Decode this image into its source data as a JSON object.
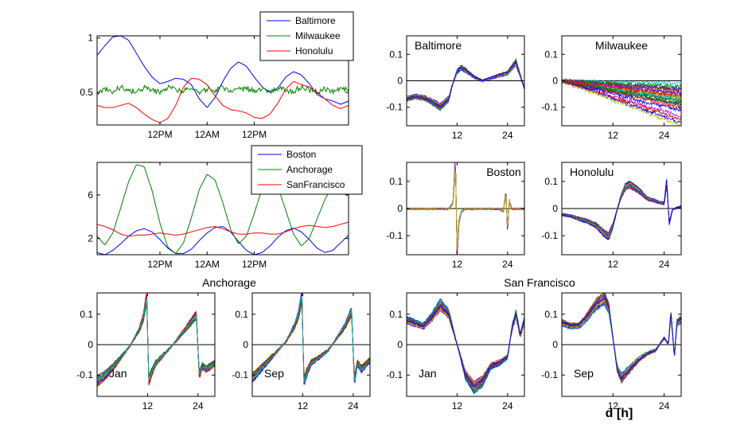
{
  "figure": {
    "xlabel": "d [h]"
  },
  "colors": {
    "blue": "#0000ff",
    "green": "#008000",
    "red": "#ff0000",
    "cycle": [
      "#0000ff",
      "#008000",
      "#ff0000",
      "#00bfbf",
      "#bf00bf",
      "#bfbf00",
      "#404040"
    ]
  },
  "chart_data": [
    {
      "id": "ts1",
      "type": "line",
      "xlim": [
        0,
        64
      ],
      "ylim": [
        0.2,
        1.02
      ],
      "yticks": [
        {
          "v": 0.5,
          "label": "0.5"
        },
        {
          "v": 1,
          "label": "1"
        }
      ],
      "xticks": [
        {
          "v": 16,
          "label": "12PM"
        },
        {
          "v": 28,
          "label": "12AM"
        },
        {
          "v": 40,
          "label": "12PM"
        }
      ],
      "legend": {
        "position": "top-right",
        "entries": [
          "Baltimore",
          "Milwaukee",
          "Honolulu"
        ]
      },
      "series": [
        {
          "name": "Baltimore",
          "color": "blue",
          "x": [
            0,
            2,
            4,
            6,
            8,
            10,
            12,
            14,
            16,
            18,
            20,
            22,
            24,
            26,
            28,
            30,
            32,
            34,
            36,
            38,
            40,
            42,
            44,
            46,
            48,
            50,
            52,
            54,
            56,
            58,
            60,
            62,
            64
          ],
          "y": [
            0.84,
            0.93,
            1.01,
            1.02,
            0.98,
            0.86,
            0.74,
            0.64,
            0.58,
            0.6,
            0.63,
            0.62,
            0.57,
            0.44,
            0.36,
            0.45,
            0.6,
            0.72,
            0.78,
            0.74,
            0.64,
            0.55,
            0.5,
            0.54,
            0.64,
            0.69,
            0.66,
            0.58,
            0.48,
            0.44,
            0.42,
            0.39,
            0.42
          ]
        },
        {
          "name": "Milwaukee",
          "color": "green",
          "x": [
            0,
            2,
            4,
            6,
            8,
            10,
            12,
            14,
            16,
            18,
            20,
            22,
            24,
            26,
            28,
            30,
            32,
            34,
            36,
            38,
            40,
            42,
            44,
            46,
            48,
            50,
            52,
            54,
            56,
            58,
            60,
            62,
            64
          ],
          "y": [
            0.5,
            0.53,
            0.51,
            0.55,
            0.52,
            0.5,
            0.54,
            0.52,
            0.5,
            0.55,
            0.53,
            0.51,
            0.54,
            0.5,
            0.53,
            0.52,
            0.55,
            0.5,
            0.52,
            0.54,
            0.51,
            0.53,
            0.5,
            0.54,
            0.52,
            0.51,
            0.55,
            0.52,
            0.5,
            0.53,
            0.51,
            0.54,
            0.52
          ]
        },
        {
          "name": "Honolulu",
          "color": "red",
          "x": [
            0,
            2,
            4,
            6,
            8,
            10,
            12,
            14,
            16,
            18,
            20,
            22,
            24,
            26,
            28,
            30,
            32,
            34,
            36,
            38,
            40,
            42,
            44,
            46,
            48,
            50,
            52,
            54,
            56,
            58,
            60,
            62,
            64
          ],
          "y": [
            0.38,
            0.36,
            0.36,
            0.38,
            0.4,
            0.36,
            0.3,
            0.25,
            0.22,
            0.26,
            0.38,
            0.55,
            0.63,
            0.62,
            0.57,
            0.47,
            0.38,
            0.34,
            0.33,
            0.31,
            0.27,
            0.26,
            0.3,
            0.4,
            0.53,
            0.6,
            0.57,
            0.55,
            0.5,
            0.44,
            0.38,
            0.35,
            0.38
          ]
        }
      ]
    },
    {
      "id": "ts2",
      "type": "line",
      "xlim": [
        0,
        64
      ],
      "ylim": [
        0.5,
        9.0
      ],
      "yticks": [
        {
          "v": 2,
          "label": "2"
        },
        {
          "v": 6,
          "label": "6"
        }
      ],
      "xticks": [
        {
          "v": 16,
          "label": "12PM"
        },
        {
          "v": 28,
          "label": "12AM"
        },
        {
          "v": 40,
          "label": "12PM"
        }
      ],
      "legend": {
        "position": "top-right",
        "entries": [
          "Boston",
          "Anchorage",
          "SanFrancisco"
        ]
      },
      "series": [
        {
          "name": "Boston",
          "color": "blue",
          "x": [
            0,
            2,
            4,
            6,
            8,
            10,
            12,
            14,
            16,
            18,
            20,
            22,
            24,
            26,
            28,
            30,
            32,
            34,
            36,
            38,
            40,
            42,
            44,
            46,
            48,
            50,
            52,
            54,
            56,
            58,
            60,
            62,
            64
          ],
          "y": [
            0.7,
            0.5,
            0.9,
            1.5,
            2.2,
            2.7,
            2.9,
            2.6,
            1.9,
            1.1,
            0.6,
            0.6,
            1.0,
            1.8,
            2.5,
            3.0,
            3.1,
            2.6,
            1.7,
            0.9,
            0.5,
            0.7,
            1.3,
            2.1,
            2.7,
            2.95,
            2.6,
            1.9,
            1.1,
            0.7,
            0.9,
            1.6,
            2.3
          ]
        },
        {
          "name": "Anchorage",
          "color": "green",
          "x": [
            0,
            2,
            4,
            6,
            8,
            10,
            12,
            14,
            16,
            18,
            20,
            22,
            24,
            26,
            28,
            30,
            32,
            34,
            36,
            38,
            40,
            42,
            44,
            46,
            48,
            50,
            52,
            54,
            56,
            58,
            60,
            62,
            64
          ],
          "y": [
            2.2,
            1.4,
            2.5,
            4.8,
            7.2,
            8.8,
            8.6,
            6.4,
            3.4,
            1.2,
            0.6,
            1.6,
            3.9,
            6.5,
            7.9,
            7.4,
            5.3,
            2.8,
            1.5,
            2.2,
            4.3,
            6.6,
            7.6,
            6.8,
            4.6,
            2.4,
            1.3,
            2.0,
            3.8,
            5.6,
            6.9,
            7.8,
            8.4
          ]
        },
        {
          "name": "SanFrancisco",
          "color": "red",
          "x": [
            0,
            2,
            4,
            6,
            8,
            10,
            12,
            14,
            16,
            18,
            20,
            22,
            24,
            26,
            28,
            30,
            32,
            34,
            36,
            38,
            40,
            42,
            44,
            46,
            48,
            50,
            52,
            54,
            56,
            58,
            60,
            62,
            64
          ],
          "y": [
            3.3,
            3.1,
            2.8,
            2.4,
            2.2,
            2.3,
            2.3,
            2.4,
            2.5,
            2.4,
            2.3,
            2.4,
            2.6,
            2.8,
            3.0,
            3.1,
            2.9,
            2.6,
            2.4,
            2.4,
            2.5,
            2.5,
            2.4,
            2.4,
            2.6,
            2.9,
            3.1,
            3.2,
            3.1,
            3.0,
            3.1,
            3.3,
            3.5
          ]
        }
      ]
    },
    {
      "id": "p_balt",
      "type": "line",
      "title": "Baltimore",
      "title_pos": "top-left",
      "xlim": [
        0,
        28
      ],
      "ylim": [
        -0.17,
        0.17
      ],
      "yticks": [
        {
          "v": -0.1,
          "label": "-0.1"
        },
        {
          "v": 0,
          "label": "0"
        },
        {
          "v": 0.1,
          "label": "0.1"
        }
      ],
      "xticks": [
        {
          "v": 12,
          "label": "12"
        },
        {
          "v": 24,
          "label": "24"
        }
      ],
      "curves": 22,
      "spread": 0.022,
      "base": {
        "x": [
          0,
          2,
          4,
          6,
          8,
          10,
          11,
          12,
          13,
          14,
          16,
          18,
          20,
          22,
          24,
          25,
          26,
          27,
          28
        ],
        "y": [
          -0.06,
          -0.05,
          -0.055,
          -0.07,
          -0.09,
          -0.06,
          0.0,
          0.045,
          0.06,
          0.05,
          0.025,
          0.01,
          0.02,
          0.03,
          0.04,
          0.06,
          0.08,
          0.03,
          -0.02
        ]
      }
    },
    {
      "id": "p_milw",
      "type": "line",
      "title": "Milwaukee",
      "title_pos": "top-center",
      "xlim": [
        0,
        28
      ],
      "ylim": [
        -0.17,
        0.17
      ],
      "yticks": [
        {
          "v": -0.1,
          "label": "-0.1"
        },
        {
          "v": 0,
          "label": "0"
        },
        {
          "v": 0.1,
          "label": "0.1"
        }
      ],
      "xticks": [
        {
          "v": 12,
          "label": "12"
        },
        {
          "v": 24,
          "label": "24"
        }
      ],
      "curves": 24,
      "fan": true,
      "base": {
        "x": [
          0,
          4,
          8,
          12,
          16,
          20,
          24,
          28
        ],
        "y": [
          0,
          0,
          0,
          0,
          0,
          0,
          0,
          0
        ]
      }
    },
    {
      "id": "p_bost",
      "type": "line",
      "title": "Boston",
      "title_pos": "top-right",
      "xlim": [
        0,
        28
      ],
      "ylim": [
        -0.17,
        0.17
      ],
      "yticks": [
        {
          "v": -0.1,
          "label": "-0.1"
        },
        {
          "v": 0,
          "label": "0"
        },
        {
          "v": 0.1,
          "label": "0.1"
        }
      ],
      "xticks": [
        {
          "v": 12,
          "label": "12"
        },
        {
          "v": 24,
          "label": "24"
        }
      ],
      "curves": 20,
      "spread": 0.004,
      "base": {
        "x": [
          0,
          4,
          8,
          10,
          11,
          11.6,
          12,
          12.4,
          13,
          14,
          16,
          20,
          22,
          23,
          23.6,
          24,
          24.4,
          25,
          26,
          28
        ],
        "y": [
          0,
          0,
          0,
          0.0,
          0.02,
          0.17,
          -0.17,
          -0.05,
          -0.01,
          0,
          0,
          0,
          0,
          -0.01,
          0.06,
          -0.08,
          0.03,
          0,
          0,
          0
        ]
      }
    },
    {
      "id": "p_hono",
      "type": "line",
      "title": "Honolulu",
      "title_pos": "top-left",
      "xlim": [
        0,
        28
      ],
      "ylim": [
        -0.17,
        0.17
      ],
      "yticks": [
        {
          "v": -0.1,
          "label": "-0.1"
        },
        {
          "v": 0,
          "label": "0"
        },
        {
          "v": 0.1,
          "label": "0.1"
        }
      ],
      "xticks": [
        {
          "v": 12,
          "label": "12"
        },
        {
          "v": 24,
          "label": "24"
        }
      ],
      "curves": 22,
      "spread": 0.013,
      "base": {
        "x": [
          0,
          2,
          4,
          6,
          8,
          10,
          11,
          12,
          13,
          14,
          15,
          16,
          18,
          20,
          22,
          24,
          24.6,
          25.2,
          26,
          28
        ],
        "y": [
          -0.02,
          -0.025,
          -0.035,
          -0.045,
          -0.06,
          -0.09,
          -0.1,
          -0.06,
          0.0,
          0.05,
          0.085,
          0.09,
          0.07,
          0.04,
          0.03,
          0.02,
          0.1,
          -0.05,
          0.0,
          0.01
        ]
      }
    },
    {
      "id": "p_anch_jan",
      "type": "line",
      "title": "Jan",
      "title_pos": "bottom-left",
      "xlim": [
        0,
        28
      ],
      "ylim": [
        -0.17,
        0.17
      ],
      "yticks": [
        {
          "v": -0.1,
          "label": "-0.1"
        },
        {
          "v": 0,
          "label": "0"
        },
        {
          "v": 0.1,
          "label": "0.1"
        }
      ],
      "xticks": [
        {
          "v": 12,
          "label": "12"
        },
        {
          "v": 24,
          "label": "24"
        }
      ],
      "curves": 18,
      "spread": 0.008,
      "base": {
        "x": [
          0,
          2,
          4,
          6,
          8,
          10,
          11,
          11.8,
          12.3,
          13,
          14,
          16,
          18,
          20,
          22,
          23.6,
          24.3,
          25,
          26,
          28
        ],
        "y": [
          -0.12,
          -0.1,
          -0.07,
          -0.035,
          0.0,
          0.05,
          0.09,
          0.16,
          -0.12,
          -0.09,
          -0.06,
          -0.03,
          0.0,
          0.035,
          0.07,
          0.1,
          -0.1,
          -0.07,
          -0.08,
          -0.06
        ]
      }
    },
    {
      "id": "p_anch_sep",
      "type": "line",
      "title": "Sep",
      "title_pos": "bottom-left",
      "xlim": [
        0,
        28
      ],
      "ylim": [
        -0.17,
        0.17
      ],
      "yticks": [
        {
          "v": -0.1,
          "label": "-0.1"
        },
        {
          "v": 0,
          "label": "0"
        },
        {
          "v": 0.1,
          "label": "0.1"
        }
      ],
      "xticks": [
        {
          "v": 12,
          "label": "12"
        },
        {
          "v": 24,
          "label": "24"
        }
      ],
      "curves": 18,
      "spread": 0.008,
      "base": {
        "x": [
          0,
          2,
          4,
          6,
          8,
          10,
          11,
          11.8,
          12.3,
          13,
          14,
          16,
          18,
          20,
          22,
          23.6,
          24.3,
          25,
          26,
          28
        ],
        "y": [
          -0.11,
          -0.08,
          -0.05,
          -0.02,
          0.01,
          0.06,
          0.1,
          0.16,
          -0.12,
          -0.09,
          -0.06,
          -0.04,
          -0.02,
          0.02,
          0.06,
          0.11,
          -0.12,
          -0.06,
          -0.08,
          -0.05
        ]
      }
    },
    {
      "id": "p_sf_jan",
      "type": "line",
      "title": "Jan",
      "title_pos": "bottom-left",
      "xlim": [
        0,
        28
      ],
      "ylim": [
        -0.17,
        0.17
      ],
      "yticks": [
        {
          "v": -0.1,
          "label": "-0.1"
        },
        {
          "v": 0,
          "label": "0"
        },
        {
          "v": 0.1,
          "label": "0.1"
        }
      ],
      "xticks": [
        {
          "v": 12,
          "label": "12"
        },
        {
          "v": 24,
          "label": "24"
        }
      ],
      "curves": 22,
      "spread": 0.012,
      "base": {
        "x": [
          0,
          2,
          4,
          6,
          8,
          10,
          12,
          14,
          16,
          18,
          20,
          22,
          24,
          25,
          26,
          27,
          28
        ],
        "y": [
          0.08,
          0.07,
          0.06,
          0.09,
          0.13,
          0.1,
          0.0,
          -0.1,
          -0.14,
          -0.12,
          -0.07,
          -0.06,
          -0.04,
          0.05,
          0.1,
          0.03,
          0.08
        ]
      }
    },
    {
      "id": "p_sf_sep",
      "type": "line",
      "title": "Sep",
      "title_pos": "bottom-left",
      "xlim": [
        0,
        28
      ],
      "ylim": [
        -0.17,
        0.17
      ],
      "yticks": [
        {
          "v": -0.1,
          "label": "-0.1"
        },
        {
          "v": 0,
          "label": "0"
        },
        {
          "v": 0.1,
          "label": "0.1"
        }
      ],
      "xticks": [
        {
          "v": 12,
          "label": "12"
        },
        {
          "v": 24,
          "label": "24"
        }
      ],
      "curves": 22,
      "spread": 0.012,
      "base": {
        "x": [
          0,
          2,
          4,
          6,
          8,
          10,
          11,
          12,
          13,
          14,
          16,
          18,
          20,
          22,
          24,
          25,
          25.6,
          26.4,
          27,
          28
        ],
        "y": [
          0.07,
          0.06,
          0.06,
          0.09,
          0.13,
          0.15,
          0.12,
          0.02,
          -0.08,
          -0.11,
          -0.08,
          -0.05,
          -0.03,
          -0.02,
          0.02,
          0.0,
          0.1,
          -0.04,
          0.07,
          0.08
        ]
      }
    }
  ],
  "group_titles": [
    {
      "id": "g_anch",
      "text": "Anchorage"
    },
    {
      "id": "g_sf",
      "text": "San Francisco"
    }
  ]
}
